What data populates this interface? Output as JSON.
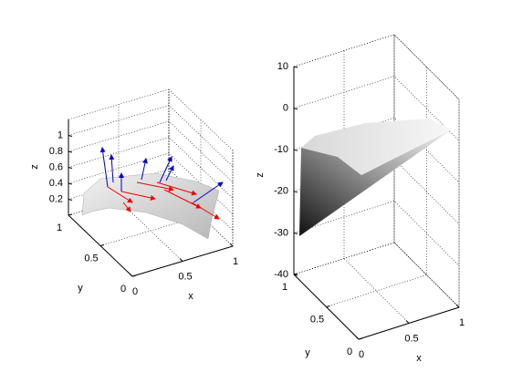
{
  "chart_data": [
    {
      "type": "surface",
      "xlabel": "x",
      "ylabel": "y",
      "zlabel": "z",
      "xlim": [
        0,
        1
      ],
      "ylim": [
        0,
        1
      ],
      "zlim": [
        0,
        1.2
      ],
      "xticks": [
        0,
        0.5,
        1
      ],
      "yticks": [
        0,
        0.5,
        1
      ],
      "zticks": [
        0.2,
        0.4,
        0.6,
        0.8,
        1
      ],
      "grid": true
    },
    {
      "type": "surface",
      "xlabel": "x",
      "ylabel": "y",
      "zlabel": "z",
      "xlim": [
        0,
        1
      ],
      "ylim": [
        0,
        1
      ],
      "zlim": [
        -40,
        10
      ],
      "xticks": [
        0,
        0.5,
        1
      ],
      "yticks": [
        0,
        0.5,
        1
      ],
      "zticks": [
        -40,
        -30,
        -20,
        -10,
        0,
        10
      ],
      "grid": true
    }
  ]
}
